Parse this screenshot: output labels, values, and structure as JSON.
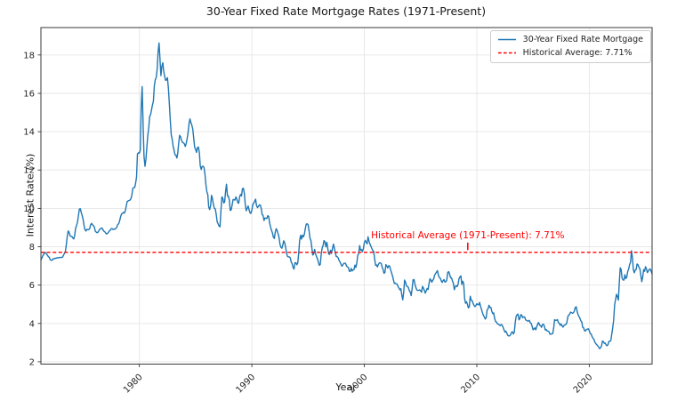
{
  "chart_data": {
    "type": "line",
    "title": "30-Year Fixed Rate Mortgage Rates (1971-Present)",
    "xlabel": "Year",
    "ylabel": "Interest Rate (%)",
    "xlim": [
      1971.25,
      2025.583
    ],
    "ylim": [
      1.88,
      19.43
    ],
    "xticks": [
      1980,
      1990,
      2000,
      2010,
      2020
    ],
    "yticks": [
      2,
      4,
      6,
      8,
      10,
      12,
      14,
      16,
      18
    ],
    "grid": true,
    "legend": {
      "position": "upper-right",
      "entries": [
        {
          "label": "30-Year Fixed Rate Mortgage",
          "color": "#1f77b4",
          "style": "solid"
        },
        {
          "label": "Historical Average: 7.71%",
          "color": "#ff0000",
          "style": "dashed"
        }
      ]
    },
    "reference_line": {
      "label": "Historical Average: 7.71%",
      "value": 7.71,
      "color": "#ff0000",
      "style": "dashed"
    },
    "annotation": {
      "text": "Historical Average (1971-Present): 7.71%",
      "x": 2009.2,
      "y": 7.71,
      "color": "#ff0000"
    },
    "series": [
      {
        "name": "30-Year Fixed Rate Mortgage",
        "color": "#1f77b4",
        "x_start": 1971.25,
        "x_step": 0.0833333,
        "values": [
          7.31,
          7.42,
          7.53,
          7.6,
          7.7,
          7.69,
          7.63,
          7.55,
          7.48,
          7.44,
          7.32,
          7.3,
          7.29,
          7.37,
          7.37,
          7.4,
          7.4,
          7.42,
          7.42,
          7.43,
          7.44,
          7.44,
          7.44,
          7.46,
          7.54,
          7.65,
          7.73,
          8.05,
          8.5,
          8.82,
          8.77,
          8.58,
          8.54,
          8.54,
          8.46,
          8.41,
          8.58,
          8.97,
          9.09,
          9.28,
          9.59,
          9.96,
          9.98,
          9.79,
          9.62,
          9.43,
          9.1,
          8.89,
          8.82,
          8.91,
          8.89,
          8.89,
          8.94,
          9.13,
          9.22,
          9.15,
          9.1,
          9.02,
          8.81,
          8.76,
          8.73,
          8.77,
          8.85,
          8.93,
          8.95,
          8.98,
          8.92,
          8.81,
          8.79,
          8.72,
          8.67,
          8.69,
          8.75,
          8.83,
          8.86,
          8.94,
          8.94,
          8.9,
          8.92,
          8.92,
          8.96,
          9.02,
          9.16,
          9.2,
          9.36,
          9.57,
          9.71,
          9.74,
          9.79,
          9.76,
          9.86,
          10.11,
          10.35,
          10.39,
          10.41,
          10.43,
          10.5,
          10.69,
          11.04,
          11.09,
          11.09,
          11.3,
          11.64,
          12.83,
          12.9,
          12.88,
          13.04,
          15.28,
          16.35,
          14.26,
          12.71,
          12.19,
          12.56,
          13.2,
          13.79,
          14.21,
          14.79,
          14.9,
          15.13,
          15.4,
          15.58,
          16.4,
          16.7,
          16.83,
          17.28,
          18.16,
          18.63,
          17.82,
          16.92,
          17.4,
          17.6,
          17.16,
          16.89,
          16.68,
          16.7,
          16.82,
          16.27,
          15.43,
          14.61,
          13.83,
          13.62,
          13.25,
          13.04,
          12.8,
          12.78,
          12.63,
          12.87,
          13.43,
          13.81,
          13.73,
          13.54,
          13.44,
          13.42,
          13.37,
          13.23,
          13.39,
          13.65,
          13.94,
          14.42,
          14.67,
          14.47,
          14.35,
          14.13,
          13.64,
          13.18,
          13.08,
          12.92,
          13.17,
          13.2,
          12.91,
          12.22,
          12.03,
          12.19,
          12.19,
          12.14,
          11.78,
          11.26,
          10.88,
          10.71,
          10.08,
          9.94,
          10.14,
          10.68,
          10.51,
          10.2,
          10.01,
          9.97,
          9.7,
          9.31,
          9.2,
          9.08,
          9.04,
          9.83,
          10.6,
          10.54,
          10.28,
          10.33,
          10.89,
          11.26,
          10.65,
          10.64,
          10.43,
          9.89,
          9.93,
          10.2,
          10.46,
          10.46,
          10.43,
          10.6,
          10.48,
          10.3,
          10.27,
          10.61,
          10.73,
          10.65,
          11.03,
          11.05,
          10.77,
          10.2,
          9.88,
          9.99,
          10.13,
          9.95,
          9.77,
          9.74,
          9.9,
          10.2,
          10.27,
          10.37,
          10.48,
          10.16,
          10.04,
          10.1,
          10.18,
          10.17,
          10.01,
          9.67,
          9.64,
          9.37,
          9.5,
          9.49,
          9.47,
          9.62,
          9.58,
          9.24,
          9.01,
          8.86,
          8.71,
          8.5,
          8.43,
          8.76,
          8.94,
          8.85,
          8.67,
          8.51,
          8.13,
          7.98,
          7.92,
          8.09,
          8.31,
          8.21,
          7.99,
          7.68,
          7.5,
          7.47,
          7.47,
          7.42,
          7.21,
          7.11,
          6.92,
          6.83,
          7.16,
          7.17,
          7.06,
          7.15,
          7.68,
          8.32,
          8.6,
          8.4,
          8.61,
          8.51,
          8.64,
          8.93,
          9.17,
          9.2,
          9.15,
          8.83,
          8.46,
          8.32,
          7.96,
          7.57,
          7.61,
          7.86,
          7.64,
          7.48,
          7.38,
          7.2,
          7.03,
          7.08,
          7.62,
          7.93,
          8.07,
          8.32,
          8.25,
          8.0,
          8.23,
          7.92,
          7.62,
          7.6,
          7.82,
          7.65,
          7.9,
          8.14,
          7.94,
          7.69,
          7.5,
          7.48,
          7.43,
          7.29,
          7.21,
          7.1,
          6.99,
          7.04,
          7.13,
          7.14,
          7.14,
          7.0,
          6.95,
          6.92,
          6.72,
          6.71,
          6.87,
          6.74,
          6.79,
          6.81,
          7.04,
          6.92,
          7.15,
          7.55,
          7.63,
          8.06,
          7.82,
          7.85,
          7.74,
          7.91,
          8.21,
          8.33,
          8.24,
          8.15,
          8.52,
          8.29,
          8.15,
          8.03,
          7.91,
          7.8,
          7.75,
          7.38,
          7.03,
          7.05,
          6.95,
          7.08,
          7.15,
          7.16,
          7.13,
          6.95,
          6.82,
          6.62,
          6.66,
          7.07,
          7.0,
          6.89,
          7.01,
          6.99,
          6.81,
          6.65,
          6.49,
          6.29,
          6.09,
          6.11,
          6.07,
          6.05,
          5.92,
          5.84,
          5.75,
          5.81,
          5.48,
          5.23,
          5.63,
          6.26,
          6.15,
          5.95,
          5.93,
          5.88,
          5.71,
          5.64,
          5.45,
          5.83,
          6.27,
          6.29,
          6.06,
          5.87,
          5.75,
          5.72,
          5.73,
          5.75,
          5.71,
          5.63,
          5.93,
          5.86,
          5.72,
          5.58,
          5.7,
          5.82,
          5.77,
          6.07,
          6.33,
          6.27,
          6.15,
          6.25,
          6.32,
          6.51,
          6.6,
          6.68,
          6.76,
          6.52,
          6.4,
          6.36,
          6.24,
          6.14,
          6.22,
          6.29,
          6.16,
          6.18,
          6.26,
          6.66,
          6.7,
          6.57,
          6.38,
          6.38,
          6.21,
          6.1,
          5.76,
          5.92,
          5.97,
          5.92,
          6.04,
          6.32,
          6.43,
          6.48,
          6.04,
          6.2,
          6.09,
          5.29,
          5.05,
          5.13,
          5.0,
          4.81,
          4.86,
          5.42,
          5.22,
          5.19,
          5.06,
          4.95,
          4.88,
          4.93,
          5.03,
          4.99,
          4.97,
          5.1,
          4.89,
          4.74,
          4.56,
          4.43,
          4.35,
          4.23,
          4.3,
          4.71,
          4.76,
          4.95,
          4.84,
          4.84,
          4.64,
          4.51,
          4.55,
          4.27,
          4.11,
          4.07,
          3.99,
          3.96,
          3.92,
          3.89,
          3.95,
          3.91,
          3.8,
          3.68,
          3.55,
          3.6,
          3.5,
          3.38,
          3.35,
          3.35,
          3.41,
          3.53,
          3.57,
          3.45,
          3.54,
          4.07,
          4.37,
          4.46,
          4.49,
          4.19,
          4.26,
          4.46,
          4.43,
          4.3,
          4.34,
          4.34,
          4.19,
          4.16,
          4.13,
          4.12,
          4.16,
          4.04,
          4.0,
          3.86,
          3.67,
          3.71,
          3.77,
          3.67,
          3.84,
          3.98,
          4.05,
          3.91,
          3.89,
          3.8,
          3.94,
          3.96,
          3.87,
          3.66,
          3.69,
          3.61,
          3.6,
          3.57,
          3.44,
          3.44,
          3.46,
          3.47,
          3.77,
          4.2,
          4.15,
          4.17,
          4.2,
          4.05,
          4.01,
          3.9,
          3.97,
          3.88,
          3.81,
          3.9,
          3.92,
          3.95,
          4.03,
          4.33,
          4.44,
          4.47,
          4.59,
          4.57,
          4.53,
          4.55,
          4.63,
          4.83,
          4.87,
          4.64,
          4.46,
          4.37,
          4.27,
          4.14,
          4.07,
          3.8,
          3.77,
          3.62,
          3.61,
          3.69,
          3.7,
          3.72,
          3.62,
          3.47,
          3.45,
          3.31,
          3.23,
          3.16,
          3.02,
          2.94,
          2.89,
          2.83,
          2.77,
          2.68,
          2.74,
          2.81,
          3.08,
          3.06,
          2.96,
          2.98,
          2.87,
          2.84,
          2.9,
          3.07,
          3.07,
          3.1,
          3.45,
          3.76,
          4.17,
          4.98,
          5.23,
          5.52,
          5.41,
          5.22,
          6.11,
          6.9,
          6.81,
          6.36,
          6.27,
          6.26,
          6.54,
          6.34,
          6.43,
          6.71,
          6.84,
          7.07,
          7.2,
          7.79,
          7.44,
          6.82,
          6.64,
          6.78,
          6.82,
          7.1,
          7.06,
          6.92,
          6.85,
          6.5,
          6.18,
          6.43,
          6.81,
          6.72,
          6.96,
          6.84,
          6.65,
          6.73,
          6.82,
          6.84,
          6.72,
          6.58
        ]
      }
    ]
  }
}
